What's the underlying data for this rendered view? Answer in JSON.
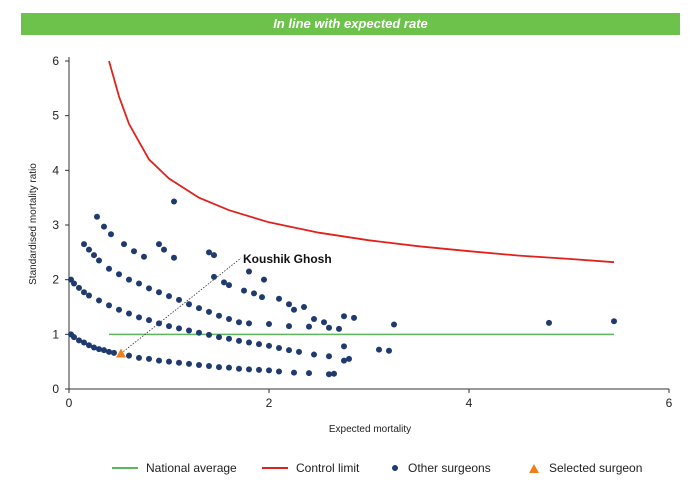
{
  "banner": {
    "text": "In line with expected rate",
    "color": "#6cc24a"
  },
  "chart_data": {
    "type": "scatter",
    "xlabel": "Expected mortality",
    "ylabel": "Standardised mortality ratio",
    "xlim": [
      0,
      6
    ],
    "ylim": [
      0,
      6
    ],
    "xticks": [
      "0",
      "2",
      "4",
      "6"
    ],
    "yticks": [
      "0",
      "1",
      "2",
      "3",
      "4",
      "5",
      "6"
    ],
    "grid": false,
    "legend_position": "bottom",
    "annotation": {
      "label": "Koushik Ghosh",
      "x": 0.52,
      "y": 0.65
    },
    "national_average": {
      "name": "National average",
      "color": "#5cb85c",
      "x": [
        0.4,
        5.45
      ],
      "y": [
        1,
        1
      ]
    },
    "control_limit": {
      "name": "Control limit",
      "color": "#e0221c",
      "x": [
        0.4,
        0.5,
        0.6,
        0.8,
        1.0,
        1.3,
        1.6,
        2.0,
        2.5,
        3.0,
        3.5,
        4.0,
        4.5,
        5.0,
        5.45
      ],
      "y": [
        6.0,
        5.35,
        4.85,
        4.2,
        3.85,
        3.5,
        3.27,
        3.05,
        2.86,
        2.72,
        2.61,
        2.52,
        2.44,
        2.38,
        2.32
      ]
    },
    "series": [
      {
        "name": "Other surgeons",
        "color": "#1f3a6e",
        "points": [
          [
            0.02,
            1.0
          ],
          [
            0.05,
            0.95
          ],
          [
            0.1,
            0.89
          ],
          [
            0.15,
            0.85
          ],
          [
            0.2,
            0.8
          ],
          [
            0.25,
            0.76
          ],
          [
            0.3,
            0.73
          ],
          [
            0.35,
            0.71
          ],
          [
            0.4,
            0.68
          ],
          [
            0.45,
            0.66
          ],
          [
            0.6,
            0.61
          ],
          [
            0.7,
            0.57
          ],
          [
            0.8,
            0.55
          ],
          [
            0.9,
            0.52
          ],
          [
            1.0,
            0.5
          ],
          [
            1.1,
            0.48
          ],
          [
            1.2,
            0.46
          ],
          [
            1.3,
            0.44
          ],
          [
            1.4,
            0.42
          ],
          [
            1.5,
            0.4
          ],
          [
            1.6,
            0.39
          ],
          [
            1.7,
            0.37
          ],
          [
            1.8,
            0.36
          ],
          [
            1.9,
            0.35
          ],
          [
            2.0,
            0.34
          ],
          [
            2.1,
            0.32
          ],
          [
            2.25,
            0.3
          ],
          [
            2.4,
            0.29
          ],
          [
            2.6,
            0.27
          ],
          [
            0.02,
            2.0
          ],
          [
            0.05,
            1.93
          ],
          [
            0.1,
            1.85
          ],
          [
            0.15,
            1.77
          ],
          [
            0.2,
            1.71
          ],
          [
            0.3,
            1.62
          ],
          [
            0.4,
            1.53
          ],
          [
            0.5,
            1.45
          ],
          [
            0.6,
            1.38
          ],
          [
            0.7,
            1.31
          ],
          [
            0.8,
            1.26
          ],
          [
            0.9,
            1.2
          ],
          [
            1.0,
            1.15
          ],
          [
            1.1,
            1.11
          ],
          [
            1.2,
            1.07
          ],
          [
            1.3,
            1.03
          ],
          [
            1.4,
            0.99
          ],
          [
            1.5,
            0.95
          ],
          [
            1.6,
            0.92
          ],
          [
            1.7,
            0.88
          ],
          [
            1.8,
            0.85
          ],
          [
            1.9,
            0.82
          ],
          [
            2.0,
            0.79
          ],
          [
            2.1,
            0.75
          ],
          [
            2.2,
            0.71
          ],
          [
            2.3,
            0.68
          ],
          [
            2.45,
            0.63
          ],
          [
            2.6,
            0.6
          ],
          [
            2.75,
            0.78
          ],
          [
            3.1,
            0.72
          ],
          [
            3.2,
            0.7
          ],
          [
            0.15,
            2.65
          ],
          [
            0.2,
            2.55
          ],
          [
            0.25,
            2.45
          ],
          [
            0.3,
            2.35
          ],
          [
            0.4,
            2.2
          ],
          [
            0.5,
            2.1
          ],
          [
            0.6,
            2.0
          ],
          [
            0.7,
            1.93
          ],
          [
            0.8,
            1.84
          ],
          [
            0.9,
            1.77
          ],
          [
            1.0,
            1.7
          ],
          [
            1.1,
            1.63
          ],
          [
            1.2,
            1.55
          ],
          [
            1.3,
            1.48
          ],
          [
            1.4,
            1.41
          ],
          [
            1.5,
            1.34
          ],
          [
            1.6,
            1.28
          ],
          [
            1.7,
            1.22
          ],
          [
            1.8,
            1.2
          ],
          [
            2.0,
            1.19
          ],
          [
            2.2,
            1.15
          ],
          [
            2.4,
            1.14
          ],
          [
            2.6,
            1.12
          ],
          [
            2.7,
            1.1
          ],
          [
            0.28,
            3.15
          ],
          [
            0.35,
            2.97
          ],
          [
            0.42,
            2.83
          ],
          [
            0.55,
            2.65
          ],
          [
            0.65,
            2.52
          ],
          [
            0.75,
            2.42
          ],
          [
            0.9,
            2.65
          ],
          [
            0.95,
            2.55
          ],
          [
            1.05,
            2.4
          ],
          [
            1.4,
            2.5
          ],
          [
            1.45,
            2.45
          ],
          [
            1.45,
            2.05
          ],
          [
            1.55,
            1.95
          ],
          [
            1.6,
            1.9
          ],
          [
            1.75,
            1.8
          ],
          [
            1.85,
            1.75
          ],
          [
            1.93,
            1.68
          ],
          [
            1.95,
            2.0
          ],
          [
            2.1,
            1.65
          ],
          [
            2.2,
            1.55
          ],
          [
            2.25,
            1.45
          ],
          [
            2.35,
            1.5
          ],
          [
            2.45,
            1.28
          ],
          [
            2.55,
            1.22
          ],
          [
            2.75,
            1.33
          ],
          [
            2.85,
            1.3
          ],
          [
            3.25,
            1.18
          ],
          [
            4.8,
            1.21
          ],
          [
            5.45,
            1.24
          ],
          [
            1.05,
            3.43
          ],
          [
            1.8,
            2.15
          ],
          [
            2.8,
            0.55
          ],
          [
            2.65,
            0.28
          ],
          [
            2.75,
            0.52
          ]
        ]
      },
      {
        "name": "Selected surgeon",
        "color": "#f07f1a",
        "points": [
          [
            0.52,
            0.65
          ]
        ]
      }
    ]
  }
}
